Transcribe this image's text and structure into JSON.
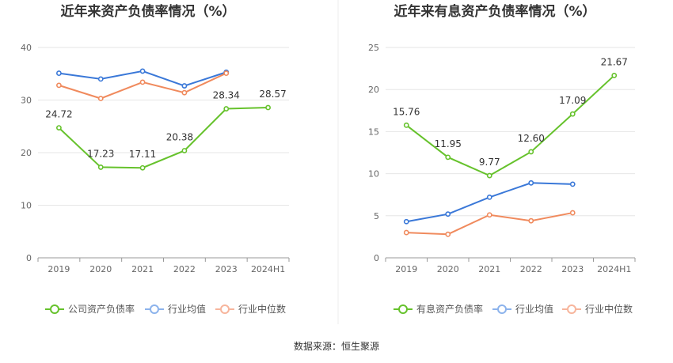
{
  "footer": {
    "source": "数据来源：恒生聚源"
  },
  "colors": {
    "green": "#66c22c",
    "blue": "#3a78d8",
    "orange": "#f08a5d",
    "legend_blue": "#8cb3ec",
    "legend_orange": "#f7b59c",
    "grid": "#e6e6e6",
    "axis": "#999999"
  },
  "chart_data": [
    {
      "type": "line",
      "title": "近年来资产负债率情况（%）",
      "categories": [
        "2019",
        "2020",
        "2021",
        "2022",
        "2023",
        "2024H1"
      ],
      "ylim": [
        0,
        40
      ],
      "yticks": [
        0,
        10,
        20,
        30,
        40
      ],
      "grid": true,
      "legend_position": "bottom",
      "series": [
        {
          "name": "公司资产负债率",
          "color": "#66c22c",
          "legend_color": "#66c22c",
          "values": [
            24.72,
            17.23,
            17.11,
            20.38,
            28.34,
            28.57
          ],
          "labels": [
            "24.72",
            "17.23",
            "17.11",
            "20.38",
            "28.34",
            "28.57"
          ]
        },
        {
          "name": "行业均值",
          "color": "#3a78d8",
          "legend_color": "#8cb3ec",
          "values": [
            35.1,
            34.0,
            35.5,
            32.7,
            35.3,
            null
          ]
        },
        {
          "name": "行业中位数",
          "color": "#f08a5d",
          "legend_color": "#f7b59c",
          "values": [
            32.8,
            30.3,
            33.4,
            31.4,
            35.1,
            null
          ]
        }
      ]
    },
    {
      "type": "line",
      "title": "近年来有息资产负债率情况（%）",
      "categories": [
        "2019",
        "2020",
        "2021",
        "2022",
        "2023",
        "2024H1"
      ],
      "ylim": [
        0,
        25
      ],
      "yticks": [
        0,
        5,
        10,
        15,
        20,
        25
      ],
      "grid": true,
      "legend_position": "bottom",
      "series": [
        {
          "name": "有息资产负债率",
          "color": "#66c22c",
          "legend_color": "#66c22c",
          "values": [
            15.76,
            11.95,
            9.77,
            12.6,
            17.09,
            21.67
          ],
          "labels": [
            "15.76",
            "11.95",
            "9.77",
            "12.60",
            "17.09",
            "21.67"
          ]
        },
        {
          "name": "行业均值",
          "color": "#3a78d8",
          "legend_color": "#8cb3ec",
          "values": [
            4.3,
            5.2,
            7.2,
            8.9,
            8.75,
            null
          ]
        },
        {
          "name": "行业中位数",
          "color": "#f08a5d",
          "legend_color": "#f7b59c",
          "values": [
            3.0,
            2.8,
            5.1,
            4.4,
            5.35,
            null
          ]
        }
      ]
    }
  ]
}
